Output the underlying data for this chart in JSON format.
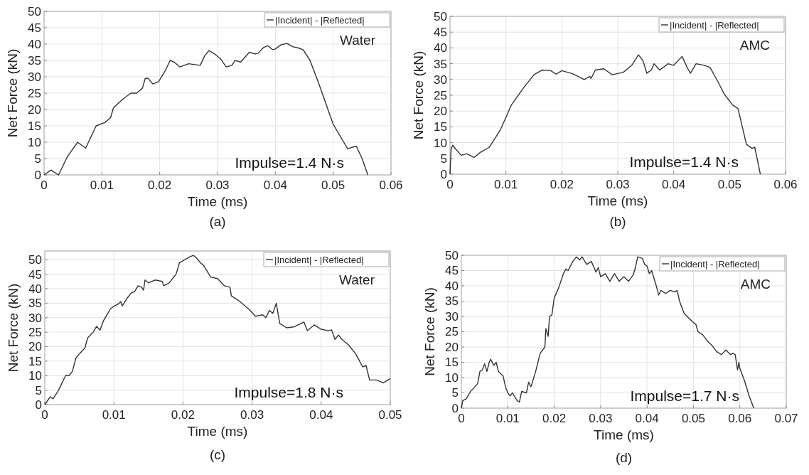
{
  "chart_data": [
    {
      "type": "line",
      "xlabel": "Time (ms)",
      "ylabel": "Net Force (kN)",
      "xlim": [
        0,
        0.06
      ],
      "xticks": [
        0,
        0.01,
        0.02,
        0.03,
        0.04,
        0.05,
        0.06
      ],
      "ylim": [
        0,
        50
      ],
      "yticks": [
        0,
        5,
        10,
        15,
        20,
        25,
        30,
        35,
        40,
        45,
        50
      ],
      "grid": true,
      "legend": "top right",
      "annotations": [
        "Water",
        "Impulse=1.4 N·s",
        "(a)"
      ],
      "series": [
        {
          "name": "|Incident| - |Reflected|",
          "color": "#333333",
          "x": [
            0,
            0.0012,
            0.0025,
            0.004,
            0.0058,
            0.0072,
            0.009,
            0.0105,
            0.0115,
            0.012,
            0.0135,
            0.015,
            0.016,
            0.017,
            0.0175,
            0.018,
            0.0188,
            0.0198,
            0.021,
            0.0218,
            0.0225,
            0.0235,
            0.025,
            0.027,
            0.0278,
            0.0285,
            0.0295,
            0.0305,
            0.0315,
            0.0325,
            0.033,
            0.034,
            0.0355,
            0.0365,
            0.037,
            0.038,
            0.0387,
            0.0395,
            0.04,
            0.041,
            0.042,
            0.043,
            0.044,
            0.0448,
            0.046,
            0.0475,
            0.0485,
            0.05,
            0.051,
            0.0525,
            0.054,
            0.055,
            0.056
          ],
          "values": [
            0,
            1.5,
            0,
            5.5,
            10,
            8.2,
            15,
            16,
            17.5,
            20.5,
            23,
            25,
            25,
            26.5,
            29.5,
            29.5,
            27.8,
            28.5,
            32,
            35,
            34.5,
            33,
            34,
            33.5,
            36.5,
            38,
            37,
            35.5,
            33,
            33.5,
            35,
            34.5,
            37.5,
            37,
            37.2,
            39,
            39.5,
            38.3,
            38.5,
            39.8,
            40.2,
            39.2,
            38.8,
            38.3,
            35,
            28,
            23,
            15.5,
            12.5,
            8,
            8.8,
            5,
            0
          ]
        }
      ]
    },
    {
      "type": "line",
      "xlabel": "Time (ms)",
      "ylabel": "Net Force (kN)",
      "xlim": [
        0,
        0.06
      ],
      "xticks": [
        0,
        0.01,
        0.02,
        0.03,
        0.04,
        0.05,
        0.06
      ],
      "ylim": [
        0,
        50
      ],
      "yticks": [
        0,
        5,
        10,
        15,
        20,
        25,
        30,
        35,
        40,
        45,
        50
      ],
      "grid": true,
      "legend": "top right",
      "annotations": [
        "AMC",
        "Impulse=1.4 N·s",
        "(b)"
      ],
      "series": [
        {
          "name": "|Incident| - |Reflected|",
          "color": "#333333",
          "x": [
            0,
            0.0002,
            0.0005,
            0.001,
            0.002,
            0.003,
            0.0043,
            0.0055,
            0.007,
            0.009,
            0.011,
            0.013,
            0.015,
            0.0165,
            0.018,
            0.019,
            0.02,
            0.022,
            0.024,
            0.025,
            0.0252,
            0.026,
            0.0275,
            0.029,
            0.031,
            0.0325,
            0.0337,
            0.0345,
            0.0352,
            0.036,
            0.0365,
            0.0375,
            0.039,
            0.04,
            0.0415,
            0.0425,
            0.043,
            0.044,
            0.0455,
            0.0465,
            0.048,
            0.049,
            0.0505,
            0.0515,
            0.053,
            0.054,
            0.0545,
            0.0555
          ],
          "values": [
            0,
            8,
            9.2,
            8,
            6,
            6.5,
            5.3,
            7,
            8.5,
            14,
            22,
            27,
            31.5,
            33,
            32.8,
            31.7,
            32.8,
            31.8,
            30,
            31,
            30.3,
            33,
            33.4,
            31.5,
            32.3,
            34.5,
            37.8,
            36,
            32,
            33,
            35,
            33,
            35,
            34.5,
            37.3,
            33.5,
            32,
            35,
            34.5,
            33.8,
            29,
            25.5,
            22,
            20.8,
            9.5,
            8.2,
            8.5,
            0
          ]
        }
      ]
    },
    {
      "type": "line",
      "xlabel": "Time (ms)",
      "ylabel": "Net Force (kN)",
      "xlim": [
        0,
        0.05
      ],
      "xticks": [
        0,
        0.01,
        0.02,
        0.03,
        0.04,
        0.05
      ],
      "ylim": [
        0,
        53
      ],
      "yticks": [
        0,
        5,
        10,
        15,
        20,
        25,
        30,
        35,
        40,
        45,
        50
      ],
      "grid": true,
      "legend": "top right",
      "annotations": [
        "Water",
        "Impulse=1.8 N·s",
        "(c)"
      ],
      "series": [
        {
          "name": "|Incident| - |Reflected|",
          "color": "#333333",
          "x": [
            0,
            0.0008,
            0.0012,
            0.002,
            0.003,
            0.0035,
            0.004,
            0.0045,
            0.005,
            0.0058,
            0.0062,
            0.007,
            0.0075,
            0.008,
            0.0085,
            0.009,
            0.0095,
            0.01,
            0.0105,
            0.011,
            0.0112,
            0.012,
            0.0125,
            0.013,
            0.0135,
            0.014,
            0.0143,
            0.0145,
            0.015,
            0.016,
            0.017,
            0.0172,
            0.018,
            0.019,
            0.0195,
            0.021,
            0.0215,
            0.022,
            0.0225,
            0.023,
            0.024,
            0.025,
            0.026,
            0.0268,
            0.027,
            0.028,
            0.0295,
            0.0305,
            0.0315,
            0.032,
            0.0325,
            0.033,
            0.0335,
            0.034,
            0.035,
            0.036,
            0.0375,
            0.038,
            0.039,
            0.04,
            0.041,
            0.0415,
            0.042,
            0.0425,
            0.043,
            0.044,
            0.045,
            0.046,
            0.0465,
            0.047,
            0.048,
            0.049,
            0.05
          ],
          "values": [
            0,
            2.7,
            2,
            5,
            10,
            10,
            11.5,
            16,
            17.5,
            19.5,
            23,
            25,
            27,
            25.7,
            29,
            31,
            33,
            34,
            34.5,
            35.5,
            34,
            37,
            38.5,
            39,
            41,
            40.5,
            39.5,
            43,
            42,
            43,
            42.5,
            41,
            42,
            45,
            49,
            51,
            51.5,
            50.5,
            49,
            48,
            44,
            43.5,
            41,
            40.5,
            37.5,
            36,
            33,
            30.5,
            31,
            30,
            32.5,
            31.5,
            35,
            28,
            26.5,
            26.8,
            28.5,
            25.5,
            27.5,
            26,
            25.5,
            25.8,
            22.5,
            24,
            22.5,
            20.5,
            17.5,
            13,
            13.5,
            8.5,
            8.5,
            7.5,
            9
          ]
        }
      ]
    },
    {
      "type": "line",
      "xlabel": "Time (ms)",
      "ylabel": "Net Force (kN)",
      "xlim": [
        0,
        0.07
      ],
      "xticks": [
        0,
        0.01,
        0.02,
        0.03,
        0.04,
        0.05,
        0.06,
        0.07
      ],
      "ylim": [
        0,
        50
      ],
      "yticks": [
        0,
        5,
        10,
        15,
        20,
        25,
        30,
        35,
        40,
        45,
        50
      ],
      "grid": true,
      "legend": "top right",
      "annotations": [
        "AMC",
        "Impulse=1.7 N·s",
        "(d)"
      ],
      "series": [
        {
          "name": "|Incident| - |Reflected|",
          "color": "#333333",
          "x": [
            0,
            0.0003,
            0.001,
            0.002,
            0.0035,
            0.004,
            0.0045,
            0.005,
            0.0055,
            0.006,
            0.0063,
            0.007,
            0.0075,
            0.008,
            0.009,
            0.0095,
            0.01,
            0.0105,
            0.011,
            0.012,
            0.0125,
            0.013,
            0.014,
            0.0145,
            0.015,
            0.016,
            0.017,
            0.018,
            0.0182,
            0.0187,
            0.019,
            0.0195,
            0.02,
            0.021,
            0.022,
            0.0225,
            0.023,
            0.024,
            0.0248,
            0.0255,
            0.026,
            0.027,
            0.028,
            0.029,
            0.0295,
            0.03,
            0.031,
            0.032,
            0.033,
            0.034,
            0.035,
            0.036,
            0.037,
            0.0375,
            0.038,
            0.039,
            0.0395,
            0.04,
            0.0405,
            0.041,
            0.042,
            0.0425,
            0.043,
            0.044,
            0.045,
            0.046,
            0.0465,
            0.047,
            0.048,
            0.049,
            0.05,
            0.0505,
            0.051,
            0.052,
            0.053,
            0.054,
            0.055,
            0.056,
            0.057,
            0.058,
            0.0585,
            0.059,
            0.0595,
            0.0598,
            0.06,
            0.061,
            0.062,
            0.063
          ],
          "values": [
            0,
            2.5,
            3,
            5.5,
            8,
            12,
            12.5,
            14.5,
            12,
            15,
            16,
            14,
            15,
            12,
            10.5,
            7,
            5,
            4,
            5,
            2.5,
            2,
            5.5,
            5,
            8.5,
            7,
            12,
            18,
            20,
            26,
            23.5,
            30,
            30.5,
            36,
            39.5,
            44,
            45.5,
            45,
            48,
            49.5,
            48.5,
            49.5,
            47,
            48,
            44.5,
            46,
            43,
            44,
            41.5,
            44,
            41.5,
            43,
            41.5,
            43.5,
            46,
            49.5,
            49,
            47,
            46.5,
            44,
            45,
            40,
            37,
            38.5,
            37.5,
            38.5,
            38,
            38.5,
            35,
            31,
            29.5,
            28,
            27.5,
            25,
            24,
            22,
            20.5,
            18.5,
            17.5,
            19,
            17.5,
            18,
            17.5,
            12.5,
            15,
            13,
            9,
            4,
            0
          ]
        }
      ]
    }
  ]
}
